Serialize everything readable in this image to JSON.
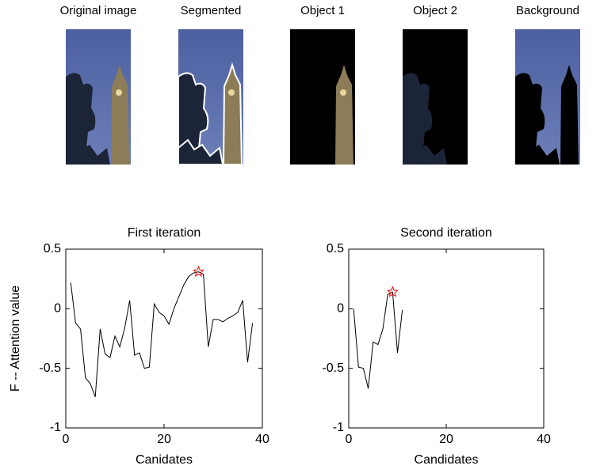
{
  "panels": {
    "captions": [
      "Original image",
      "Segmented",
      "Object 1",
      "Object 2",
      "Background"
    ]
  },
  "chart_data": [
    {
      "type": "line",
      "title": "First iteration",
      "xlabel": "Canidates",
      "ylabel": "F -- Attention value",
      "x": [
        1,
        2,
        3,
        4,
        5,
        6,
        7,
        8,
        9,
        10,
        11,
        12,
        13,
        14,
        15,
        16,
        17,
        18,
        19,
        20,
        21,
        22,
        23,
        24,
        25,
        26,
        27,
        28,
        29,
        30,
        31,
        32,
        33,
        34,
        35,
        36,
        37,
        38
      ],
      "series": [
        {
          "color": "#000000",
          "values": [
            0.22,
            -0.12,
            -0.17,
            -0.58,
            -0.63,
            -0.74,
            -0.17,
            -0.38,
            -0.41,
            -0.23,
            -0.32,
            -0.16,
            0.07,
            -0.39,
            -0.37,
            -0.5,
            -0.49,
            0.04,
            -0.03,
            -0.06,
            -0.13,
            0.0,
            0.1,
            0.2,
            0.27,
            0.3,
            0.31,
            0.29,
            -0.32,
            -0.09,
            -0.09,
            -0.11,
            -0.08,
            -0.06,
            -0.03,
            0.07,
            -0.45,
            -0.12
          ]
        }
      ],
      "highlight": {
        "x": 27,
        "y": 0.31,
        "color": "#ff0000"
      },
      "xlim": [
        0,
        40
      ],
      "xticks": [
        0,
        20,
        40
      ],
      "ylim": [
        -1,
        0.5
      ],
      "yticks": [
        -1,
        -0.5,
        0,
        0.5
      ]
    },
    {
      "type": "line",
      "title": "Second iteration",
      "xlabel": "Candidates",
      "x": [
        1,
        2,
        3,
        4,
        5,
        6,
        7,
        8,
        9,
        10,
        11
      ],
      "series": [
        {
          "color": "#000000",
          "values": [
            0.0,
            -0.49,
            -0.5,
            -0.67,
            -0.28,
            -0.3,
            -0.17,
            0.12,
            0.14,
            -0.37,
            -0.01
          ]
        }
      ],
      "highlight": {
        "x": 9,
        "y": 0.14,
        "color": "#ff0000"
      },
      "xlim": [
        0,
        40
      ],
      "xticks": [
        0,
        20,
        40
      ],
      "ylim": [
        -1,
        0.5
      ],
      "yticks": [
        -1,
        -0.5,
        0,
        0.5
      ]
    }
  ]
}
